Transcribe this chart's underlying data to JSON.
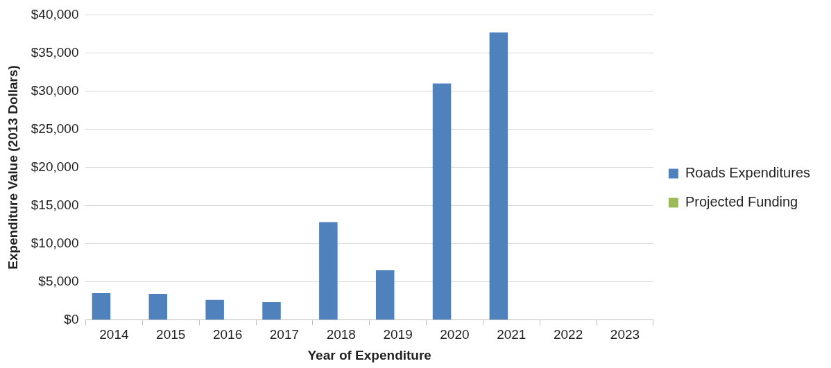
{
  "chart_data": {
    "type": "bar",
    "xlabel": "Year of Expenditure",
    "ylabel": "Expenditure Value (2013 Dollars)",
    "categories": [
      "2014",
      "2015",
      "2016",
      "2017",
      "2018",
      "2019",
      "2020",
      "2021",
      "2022",
      "2023"
    ],
    "series": [
      {
        "name": "Roads Expenditures",
        "color": "#4f81bd",
        "values": [
          3500,
          3400,
          2600,
          2300,
          12800,
          6500,
          31000,
          37700,
          null,
          null
        ]
      },
      {
        "name": "Projected Funding",
        "color": "#9bbb59",
        "values": [
          null,
          null,
          null,
          null,
          null,
          null,
          null,
          null,
          null,
          null
        ]
      }
    ],
    "ylim": [
      0,
      40000
    ],
    "yticks": [
      {
        "value": 0,
        "label": "$0"
      },
      {
        "value": 5000,
        "label": "$5,000"
      },
      {
        "value": 10000,
        "label": "$10,000"
      },
      {
        "value": 15000,
        "label": "$15,000"
      },
      {
        "value": 20000,
        "label": "$20,000"
      },
      {
        "value": 25000,
        "label": "$25,000"
      },
      {
        "value": 30000,
        "label": "$30,000"
      },
      {
        "value": 35000,
        "label": "$35,000"
      },
      {
        "value": 40000,
        "label": "$40,000"
      }
    ],
    "grid": "y",
    "legend": "right"
  }
}
